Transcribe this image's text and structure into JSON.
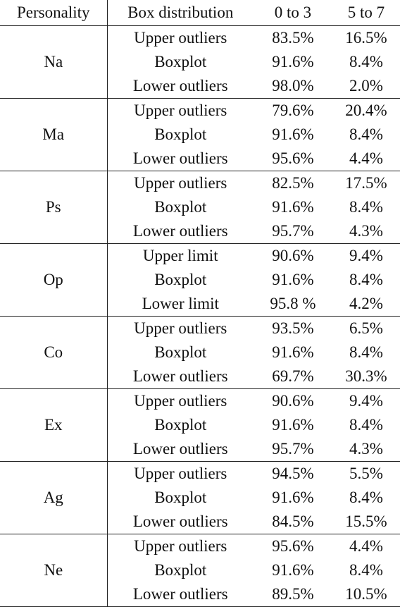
{
  "header": {
    "personality": "Personality",
    "box_distribution": "Box distribution",
    "range_low": "0 to 3",
    "range_high": "5 to 7"
  },
  "groups": [
    {
      "personality": "Na",
      "rows": [
        {
          "dist": "Upper outliers",
          "low": "83.5%",
          "high": "16.5%"
        },
        {
          "dist": "Boxplot",
          "low": "91.6%",
          "high": "8.4%"
        },
        {
          "dist": "Lower outliers",
          "low": "98.0%",
          "high": "2.0%"
        }
      ]
    },
    {
      "personality": "Ma",
      "rows": [
        {
          "dist": "Upper outliers",
          "low": "79.6%",
          "high": "20.4%"
        },
        {
          "dist": "Boxplot",
          "low": "91.6%",
          "high": "8.4%"
        },
        {
          "dist": "Lower outliers",
          "low": "95.6%",
          "high": "4.4%"
        }
      ]
    },
    {
      "personality": "Ps",
      "rows": [
        {
          "dist": "Upper outliers",
          "low": "82.5%",
          "high": "17.5%"
        },
        {
          "dist": "Boxplot",
          "low": "91.6%",
          "high": "8.4%"
        },
        {
          "dist": "Lower outliers",
          "low": "95.7%",
          "high": "4.3%"
        }
      ]
    },
    {
      "personality": "Op",
      "rows": [
        {
          "dist": "Upper limit",
          "low": "90.6%",
          "high": "9.4%"
        },
        {
          "dist": "Boxplot",
          "low": "91.6%",
          "high": "8.4%"
        },
        {
          "dist": "Lower limit",
          "low": "95.8 %",
          "high": "4.2%"
        }
      ]
    },
    {
      "personality": "Co",
      "rows": [
        {
          "dist": "Upper outliers",
          "low": "93.5%",
          "high": "6.5%"
        },
        {
          "dist": "Boxplot",
          "low": "91.6%",
          "high": "8.4%"
        },
        {
          "dist": "Lower outliers",
          "low": "69.7%",
          "high": "30.3%"
        }
      ]
    },
    {
      "personality": "Ex",
      "rows": [
        {
          "dist": "Upper outliers",
          "low": "90.6%",
          "high": "9.4%"
        },
        {
          "dist": "Boxplot",
          "low": "91.6%",
          "high": "8.4%"
        },
        {
          "dist": "Lower outliers",
          "low": "95.7%",
          "high": "4.3%"
        }
      ]
    },
    {
      "personality": "Ag",
      "rows": [
        {
          "dist": "Upper outliers",
          "low": "94.5%",
          "high": "5.5%"
        },
        {
          "dist": "Boxplot",
          "low": "91.6%",
          "high": "8.4%"
        },
        {
          "dist": "Lower outliers",
          "low": "84.5%",
          "high": "15.5%"
        }
      ]
    },
    {
      "personality": "Ne",
      "rows": [
        {
          "dist": "Upper outliers",
          "low": "95.6%",
          "high": "4.4%"
        },
        {
          "dist": "Boxplot",
          "low": "91.6%",
          "high": "8.4%"
        },
        {
          "dist": "Lower outliers",
          "low": "89.5%",
          "high": "10.5%"
        }
      ]
    }
  ]
}
